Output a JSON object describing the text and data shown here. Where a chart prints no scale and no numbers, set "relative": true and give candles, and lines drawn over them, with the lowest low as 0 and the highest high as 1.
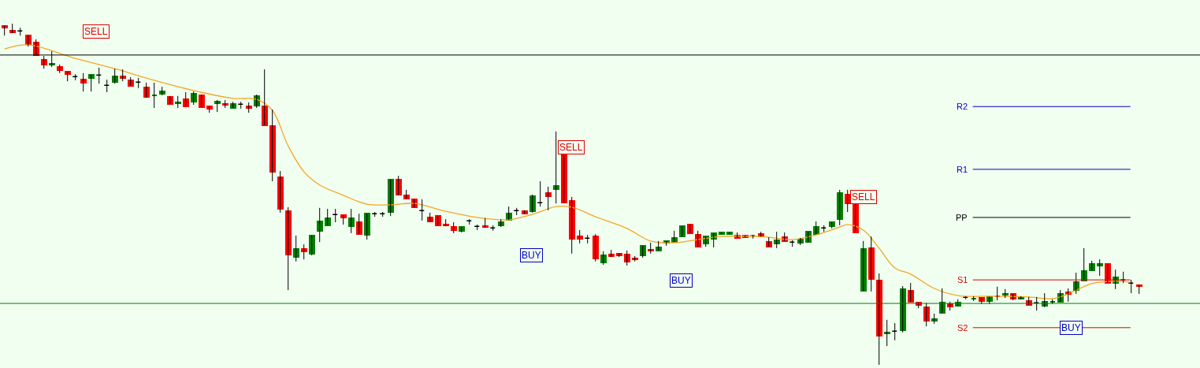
{
  "chart_data": {
    "type": "candlestick",
    "relative": true,
    "categories": [
      null,
      null,
      null,
      null,
      null,
      null,
      null,
      null,
      null,
      null,
      null,
      null,
      null,
      null,
      null,
      null,
      null,
      null,
      null,
      null,
      null,
      null,
      null,
      null,
      null,
      null,
      null,
      null,
      null,
      null,
      null,
      null,
      null,
      null,
      null,
      null,
      null,
      null,
      null,
      null,
      null,
      null,
      null,
      null,
      null,
      null,
      null,
      null,
      null,
      null,
      null,
      null,
      null,
      null,
      null,
      null,
      null,
      null,
      null,
      null,
      null,
      null,
      null,
      null,
      null,
      null,
      null,
      null,
      null,
      null,
      null,
      null,
      null,
      null,
      null,
      null,
      null,
      null,
      null,
      null,
      null,
      null,
      null,
      null,
      null,
      null,
      null,
      null,
      null,
      null,
      null,
      null,
      null,
      null,
      null,
      null,
      null,
      null,
      null,
      null,
      null,
      null,
      null,
      null,
      null,
      null,
      null,
      null,
      null,
      null,
      null,
      null,
      null,
      null,
      null,
      null,
      null,
      null,
      null,
      null,
      null,
      null,
      null,
      null,
      null,
      null,
      null,
      null,
      null,
      null,
      null,
      null,
      null,
      null,
      null,
      null,
      null,
      null,
      null,
      null,
      null,
      null,
      null,
      null,
      null
    ],
    "ohlc": [
      [
        0.993,
        0.995,
        0.965,
        0.988
      ],
      [
        0.979,
        1.0,
        0.972,
        0.975
      ],
      [
        0.977,
        0.988,
        0.965,
        0.977
      ],
      [
        0.965,
        0.965,
        0.933,
        0.94
      ],
      [
        0.945,
        0.954,
        0.908,
        0.908
      ],
      [
        0.894,
        0.905,
        0.868,
        0.88
      ],
      [
        0.881,
        0.919,
        0.873,
        0.883
      ],
      [
        0.873,
        0.88,
        0.855,
        0.864
      ],
      [
        0.859,
        0.859,
        0.831,
        0.852
      ],
      [
        0.843,
        0.852,
        0.834,
        0.843
      ],
      [
        0.836,
        0.855,
        0.801,
        0.827
      ],
      [
        0.841,
        0.85,
        0.801,
        0.85
      ],
      [
        0.848,
        0.871,
        0.824,
        0.848
      ],
      [
        0.818,
        0.836,
        0.799,
        0.818
      ],
      [
        0.829,
        0.868,
        0.824,
        0.845
      ],
      [
        0.845,
        0.866,
        0.831,
        0.841
      ],
      [
        0.834,
        0.843,
        0.818,
        0.818
      ],
      [
        0.827,
        0.841,
        0.811,
        0.827
      ],
      [
        0.813,
        0.827,
        0.783,
        0.785
      ],
      [
        0.789,
        0.827,
        0.753,
        0.791
      ],
      [
        0.794,
        0.815,
        0.79,
        0.801
      ],
      [
        0.785,
        0.788,
        0.764,
        0.764
      ],
      [
        0.767,
        0.788,
        0.753,
        0.769
      ],
      [
        0.778,
        0.799,
        0.758,
        0.758
      ],
      [
        0.771,
        0.801,
        0.762,
        0.794
      ],
      [
        0.79,
        0.792,
        0.755,
        0.755
      ],
      [
        0.758,
        0.758,
        0.739,
        0.751
      ],
      [
        0.767,
        0.776,
        0.741,
        0.771
      ],
      [
        0.764,
        0.776,
        0.753,
        0.762
      ],
      [
        0.753,
        0.771,
        0.753,
        0.764
      ],
      [
        0.762,
        0.771,
        0.751,
        0.762
      ],
      [
        0.758,
        0.769,
        0.739,
        0.753
      ],
      [
        0.76,
        0.792,
        0.753,
        0.788
      ],
      [
        0.758,
        0.866,
        0.702,
        0.702
      ],
      [
        0.7,
        0.748,
        0.538,
        0.566
      ],
      [
        0.55,
        0.568,
        0.446,
        0.457
      ],
      [
        0.45,
        0.462,
        0.219,
        0.323
      ],
      [
        0.316,
        0.379,
        0.303,
        0.339
      ],
      [
        0.339,
        0.353,
        0.309,
        0.333
      ],
      [
        0.326,
        0.379,
        0.321,
        0.379
      ],
      [
        0.393,
        0.46,
        0.36,
        0.42
      ],
      [
        0.409,
        0.457,
        0.409,
        0.43
      ],
      [
        0.439,
        0.457,
        0.418,
        0.439
      ],
      [
        0.439,
        0.439,
        0.411,
        0.432
      ],
      [
        0.406,
        0.457,
        0.386,
        0.43
      ],
      [
        0.418,
        0.443,
        0.383,
        0.383
      ],
      [
        0.381,
        0.443,
        0.367,
        0.443
      ],
      [
        0.441,
        0.448,
        0.434,
        0.441
      ],
      [
        0.441,
        0.448,
        0.434,
        0.441
      ],
      [
        0.448,
        0.543,
        0.436,
        0.543
      ],
      [
        0.543,
        0.554,
        0.497,
        0.499
      ],
      [
        0.497,
        0.513,
        0.487,
        0.487
      ],
      [
        0.485,
        0.485,
        0.462,
        0.462
      ],
      [
        0.45,
        0.485,
        0.423,
        0.45
      ],
      [
        0.432,
        0.446,
        0.42,
        0.42
      ],
      [
        0.436,
        0.436,
        0.409,
        0.409
      ],
      [
        0.411,
        0.427,
        0.406,
        0.409
      ],
      [
        0.404,
        0.418,
        0.386,
        0.395
      ],
      [
        0.393,
        0.404,
        0.388,
        0.404
      ],
      [
        0.42,
        0.427,
        0.411,
        0.42
      ],
      [
        0.404,
        0.411,
        0.395,
        0.404
      ],
      [
        0.406,
        0.43,
        0.402,
        0.404
      ],
      [
        0.4,
        0.409,
        0.393,
        0.4
      ],
      [
        0.409,
        0.427,
        0.404,
        0.418
      ],
      [
        0.425,
        0.464,
        0.425,
        0.443
      ],
      [
        0.45,
        0.46,
        0.439,
        0.45
      ],
      [
        0.45,
        0.453,
        0.443,
        0.443
      ],
      [
        0.45,
        0.499,
        0.446,
        0.494
      ],
      [
        0.473,
        0.538,
        0.464,
        0.473
      ],
      [
        0.503,
        0.522,
        0.453,
        0.494
      ],
      [
        0.515,
        0.684,
        0.473,
        0.524
      ],
      [
        0.614,
        0.614,
        0.476,
        0.476
      ],
      [
        0.48,
        0.492,
        0.326,
        0.37
      ],
      [
        0.376,
        0.395,
        0.356,
        0.37
      ],
      [
        0.37,
        0.381,
        0.356,
        0.37
      ],
      [
        0.376,
        0.383,
        0.303,
        0.312
      ],
      [
        0.3,
        0.333,
        0.293,
        0.321
      ],
      [
        0.323,
        0.337,
        0.316,
        0.319
      ],
      [
        0.326,
        0.326,
        0.316,
        0.321
      ],
      [
        0.323,
        0.335,
        0.291,
        0.303
      ],
      [
        0.312,
        0.319,
        0.303,
        0.309
      ],
      [
        0.321,
        0.349,
        0.314,
        0.349
      ],
      [
        0.337,
        0.358,
        0.326,
        0.335
      ],
      [
        0.335,
        0.363,
        0.335,
        0.344
      ],
      [
        0.358,
        0.363,
        0.349,
        0.363
      ],
      [
        0.36,
        0.393,
        0.36,
        0.372
      ],
      [
        0.376,
        0.406,
        0.376,
        0.406
      ],
      [
        0.411,
        0.411,
        0.386,
        0.386
      ],
      [
        0.381,
        0.393,
        0.346,
        0.346
      ],
      [
        0.356,
        0.376,
        0.346,
        0.376
      ],
      [
        0.37,
        0.386,
        0.344,
        0.386
      ],
      [
        0.383,
        0.388,
        0.383,
        0.388
      ],
      [
        0.383,
        0.388,
        0.383,
        0.388
      ],
      [
        0.379,
        0.388,
        0.372,
        0.372
      ],
      [
        0.379,
        0.379,
        0.374,
        0.374
      ],
      [
        0.376,
        0.381,
        0.37,
        0.376
      ],
      [
        0.383,
        0.39,
        0.376,
        0.376
      ],
      [
        0.36,
        0.374,
        0.346,
        0.346
      ],
      [
        0.356,
        0.39,
        0.342,
        0.365
      ],
      [
        0.374,
        0.388,
        0.363,
        0.363
      ],
      [
        0.358,
        0.365,
        0.346,
        0.358
      ],
      [
        0.358,
        0.372,
        0.351,
        0.367
      ],
      [
        0.36,
        0.39,
        0.36,
        0.39
      ],
      [
        0.383,
        0.42,
        0.383,
        0.404
      ],
      [
        0.4,
        0.409,
        0.39,
        0.4
      ],
      [
        0.406,
        0.418,
        0.4,
        0.418
      ],
      [
        0.427,
        0.513,
        0.409,
        0.503
      ],
      [
        0.499,
        0.513,
        0.448,
        0.473
      ],
      [
        0.471,
        0.471,
        0.388,
        0.388
      ],
      [
        0.217,
        0.363,
        0.217,
        0.339
      ],
      [
        0.342,
        0.376,
        0.215,
        0.252
      ],
      [
        0.247,
        0.268,
        0.0,
        0.085
      ],
      [
        0.092,
        0.132,
        0.055,
        0.095
      ],
      [
        0.097,
        0.122,
        0.072,
        0.097
      ],
      [
        0.102,
        0.231,
        0.095,
        0.222
      ],
      [
        0.217,
        0.24,
        0.185,
        0.185
      ],
      [
        0.182,
        0.182,
        0.166,
        0.176
      ],
      [
        0.169,
        0.182,
        0.113,
        0.129
      ],
      [
        0.129,
        0.15,
        0.12,
        0.134
      ],
      [
        0.152,
        0.224,
        0.152,
        0.182
      ],
      [
        0.178,
        0.185,
        0.159,
        0.171
      ],
      [
        0.173,
        0.192,
        0.173,
        0.182
      ],
      [
        0.196,
        0.201,
        0.192,
        0.196
      ],
      [
        0.193,
        0.201,
        0.187,
        0.195
      ],
      [
        0.196,
        0.196,
        0.178,
        0.187
      ],
      [
        0.187,
        0.199,
        0.178,
        0.199
      ],
      [
        0.202,
        0.229,
        0.189,
        0.2
      ],
      [
        0.206,
        0.222,
        0.196,
        0.208
      ],
      [
        0.208,
        0.208,
        0.189,
        0.194
      ],
      [
        0.194,
        0.201,
        0.192,
        0.199
      ],
      [
        0.187,
        0.199,
        0.176,
        0.176
      ],
      [
        0.18,
        0.199,
        0.159,
        0.18
      ],
      [
        0.173,
        0.21,
        0.169,
        0.185
      ],
      [
        0.184,
        0.192,
        0.178,
        0.185
      ],
      [
        0.185,
        0.219,
        0.185,
        0.208
      ],
      [
        0.212,
        0.224,
        0.185,
        0.208
      ],
      [
        0.219,
        0.27,
        0.208,
        0.242
      ],
      [
        0.247,
        0.342,
        0.247,
        0.275
      ],
      [
        0.277,
        0.305,
        0.277,
        0.296
      ],
      [
        0.291,
        0.309,
        0.261,
        0.296
      ],
      [
        0.296,
        0.296,
        0.24,
        0.24
      ],
      [
        0.24,
        0.279,
        0.222,
        0.256
      ],
      [
        0.247,
        0.273,
        0.24,
        0.247
      ],
      [
        0.238,
        0.249,
        0.21,
        0.238
      ],
      [
        0.233,
        0.233,
        0.208,
        0.231
      ]
    ],
    "colors": [
      "#ff0000",
      "#ff0000",
      "#000000",
      "#ff0000",
      "#ff0000",
      "#ff0000",
      "#008000",
      "#ff0000",
      "#ff0000",
      "#000000",
      "#ff0000",
      "#008000",
      "#000000",
      "#000000",
      "#008000",
      "#ff0000",
      "#ff0000",
      "#000000",
      "#ff0000",
      "#008000",
      "#008000",
      "#ff0000",
      "#008000",
      "#ff0000",
      "#008000",
      "#ff0000",
      "#ff0000",
      "#008000",
      "#ff0000",
      "#008000",
      "#000000",
      "#ff0000",
      "#008000",
      "#ff0000",
      "#ff0000",
      "#ff0000",
      "#ff0000",
      "#008000",
      "#ff0000",
      "#008000",
      "#008000",
      "#008000",
      "#000000",
      "#ff0000",
      "#008000",
      "#ff0000",
      "#008000",
      "#000000",
      "#000000",
      "#008000",
      "#ff0000",
      "#ff0000",
      "#ff0000",
      "#000000",
      "#ff0000",
      "#ff0000",
      "#ff0000",
      "#ff0000",
      "#008000",
      "#000000",
      "#000000",
      "#ff0000",
      "#000000",
      "#008000",
      "#008000",
      "#000000",
      "#ff0000",
      "#008000",
      "#000000",
      "#ff0000",
      "#008000",
      "#ff0000",
      "#ff0000",
      "#ff0000",
      "#000000",
      "#ff0000",
      "#008000",
      "#ff0000",
      "#ff0000",
      "#ff0000",
      "#ff0000",
      "#008000",
      "#ff0000",
      "#008000",
      "#008000",
      "#008000",
      "#008000",
      "#ff0000",
      "#ff0000",
      "#008000",
      "#008000",
      "#008000",
      "#008000",
      "#ff0000",
      "#ff0000",
      "#000000",
      "#ff0000",
      "#ff0000",
      "#008000",
      "#ff0000",
      "#000000",
      "#008000",
      "#008000",
      "#008000",
      "#000000",
      "#008000",
      "#008000",
      "#ff0000",
      "#ff0000",
      "#008000",
      "#ff0000",
      "#ff0000",
      "#008000",
      "#000000",
      "#008000",
      "#ff0000",
      "#ff0000",
      "#ff0000",
      "#008000",
      "#008000",
      "#ff0000",
      "#008000",
      "#000000",
      "#008000",
      "#ff0000",
      "#008000",
      "#ff0000",
      "#008000",
      "#ff0000",
      "#008000",
      "#ff0000",
      "#000000",
      "#008000",
      "#008000",
      "#008000",
      "#ff0000",
      "#008000",
      "#008000",
      "#008000",
      "#008000",
      "#ff0000",
      "#008000",
      "#000000",
      "#000000",
      "#ff0000"
    ],
    "series": [
      {
        "type": "line",
        "color": "#f5a623",
        "values": [
          0.926,
          null,
          null,
          0.938,
          null,
          null,
          null,
          null,
          null,
          0.898,
          null,
          null,
          null,
          null,
          0.868,
          null,
          null,
          null,
          null,
          0.834,
          null,
          null,
          null,
          null,
          0.804,
          null,
          null,
          null,
          null,
          0.781,
          null,
          null,
          0.778,
          null,
          0.746,
          null,
          0.642,
          null,
          0.566,
          null,
          0.527,
          null,
          null,
          0.497,
          null,
          null,
          0.471,
          null,
          null,
          0.469,
          null,
          null,
          0.473,
          null,
          null,
          null,
          0.45,
          null,
          null,
          null,
          0.432,
          null,
          null,
          null,
          0.425,
          null,
          null,
          0.441,
          null,
          null,
          0.464,
          null,
          0.462,
          null,
          null,
          0.434,
          null,
          null,
          null,
          0.4,
          null,
          null,
          0.363,
          null,
          null,
          0.358,
          null,
          null,
          0.367,
          null,
          null,
          0.376,
          null,
          null,
          null,
          null,
          0.376,
          null,
          null,
          null,
          0.367,
          null,
          null,
          0.381,
          null,
          null,
          0.404,
          0.411,
          null,
          0.395,
          null,
          0.342,
          null,
          0.284,
          null,
          0.266,
          null,
          null,
          0.224,
          null,
          null,
          0.203,
          null,
          null,
          null,
          0.201,
          null,
          null,
          null,
          null,
          0.199,
          null,
          null,
          0.194,
          null,
          0.208,
          null,
          null,
          0.238,
          null,
          null,
          0.245,
          null,
          0.242,
          null
        ]
      }
    ],
    "ref_lines": [
      {
        "axis": "y",
        "value": 0.908,
        "color": "#000000"
      },
      {
        "axis": "y",
        "value": 0.18,
        "color": "#008000"
      },
      {
        "axis": "y",
        "value": 0.757,
        "label": "R2",
        "color": "#0000c0"
      },
      {
        "axis": "y",
        "value": 0.573,
        "label": "R1",
        "color": "#0000c0"
      },
      {
        "axis": "y",
        "value": 0.432,
        "label": "PP",
        "color": "#000000"
      },
      {
        "axis": "y",
        "value": 0.249,
        "label": "S1",
        "color": "#e00000"
      },
      {
        "axis": "y",
        "value": 0.109,
        "label": "S2",
        "color": "#e00000"
      }
    ],
    "annotations": [
      "SELL",
      "BUY",
      "SELL",
      "BUY",
      "SELL",
      "BUY"
    ]
  }
}
